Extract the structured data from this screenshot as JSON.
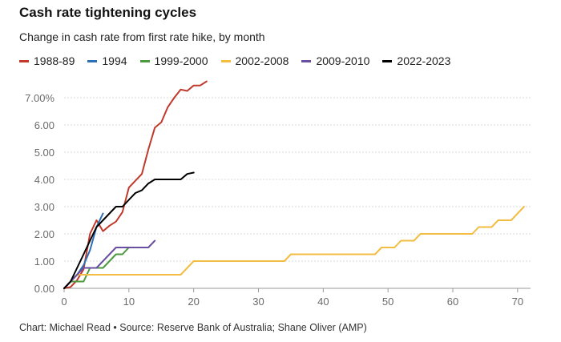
{
  "header": {
    "title": "Cash rate tightening cycles",
    "subtitle": "Change in cash rate from first rate hike, by month"
  },
  "footer": {
    "credit": "Chart: Michael Read • Source: Reserve Bank of Australia; Shane Oliver (AMP)"
  },
  "chart_data": {
    "type": "line",
    "title": "Cash rate tightening cycles",
    "subtitle": "Change in cash rate from first rate hike, by month",
    "xlabel": "",
    "ylabel": "",
    "xlim": [
      0,
      72
    ],
    "ylim": [
      0,
      7.5
    ],
    "x_ticks": [
      0,
      10,
      20,
      30,
      40,
      50,
      60,
      70
    ],
    "y_ticks": [
      0,
      1,
      2,
      3,
      4,
      5,
      6,
      7
    ],
    "y_tick_labels": [
      "0.00",
      "1.00",
      "2.00",
      "3.00",
      "4.00",
      "5.00",
      "6.00",
      "7.00%"
    ],
    "grid": "horizontal",
    "legend_position": "top",
    "series": [
      {
        "name": "1988-89",
        "color": "#c0392b",
        "points": [
          [
            0,
            0
          ],
          [
            1,
            0.05
          ],
          [
            2,
            0.3
          ],
          [
            3,
            0.7
          ],
          [
            4,
            2.0
          ],
          [
            5,
            2.5
          ],
          [
            6,
            2.1
          ],
          [
            7,
            2.3
          ],
          [
            8,
            2.45
          ],
          [
            9,
            2.8
          ],
          [
            10,
            3.7
          ],
          [
            11,
            3.95
          ],
          [
            12,
            4.2
          ],
          [
            13,
            5.1
          ],
          [
            14,
            5.9
          ],
          [
            15,
            6.1
          ],
          [
            16,
            6.65
          ],
          [
            17,
            7.0
          ],
          [
            18,
            7.3
          ],
          [
            19,
            7.25
          ],
          [
            20,
            7.45
          ],
          [
            21,
            7.45
          ],
          [
            22,
            7.6
          ]
        ]
      },
      {
        "name": "1994",
        "color": "#2c6fb5",
        "points": [
          [
            0,
            0
          ],
          [
            1,
            0.25
          ],
          [
            2,
            0.5
          ],
          [
            3,
            0.85
          ],
          [
            4,
            1.4
          ],
          [
            5,
            2.25
          ],
          [
            6,
            2.75
          ]
        ]
      },
      {
        "name": "1999-2000",
        "color": "#4c9a3e",
        "points": [
          [
            0,
            0
          ],
          [
            1,
            0.25
          ],
          [
            2,
            0.25
          ],
          [
            3,
            0.25
          ],
          [
            4,
            0.75
          ],
          [
            5,
            0.75
          ],
          [
            6,
            0.75
          ],
          [
            7,
            1.0
          ],
          [
            8,
            1.25
          ],
          [
            9,
            1.25
          ],
          [
            10,
            1.5
          ]
        ]
      },
      {
        "name": "2002-2008",
        "color": "#f2bd42",
        "points": [
          [
            0,
            0
          ],
          [
            1,
            0.25
          ],
          [
            2,
            0.5
          ],
          [
            17,
            0.5
          ],
          [
            18,
            0.5
          ],
          [
            20,
            1.0
          ],
          [
            34,
            1.0
          ],
          [
            35,
            1.25
          ],
          [
            48,
            1.25
          ],
          [
            49,
            1.5
          ],
          [
            51,
            1.5
          ],
          [
            52,
            1.75
          ],
          [
            54,
            1.75
          ],
          [
            55,
            2.0
          ],
          [
            56,
            2.0
          ],
          [
            63,
            2.0
          ],
          [
            64,
            2.25
          ],
          [
            65,
            2.25
          ],
          [
            66,
            2.25
          ],
          [
            67,
            2.5
          ],
          [
            69,
            2.5
          ],
          [
            71,
            3.0
          ]
        ]
      },
      {
        "name": "2009-2010",
        "color": "#6a4fa0",
        "points": [
          [
            0,
            0
          ],
          [
            1,
            0.25
          ],
          [
            2,
            0.5
          ],
          [
            3,
            0.75
          ],
          [
            5,
            0.75
          ],
          [
            6,
            1.0
          ],
          [
            7,
            1.25
          ],
          [
            8,
            1.5
          ],
          [
            12,
            1.5
          ],
          [
            13,
            1.5
          ],
          [
            14,
            1.75
          ]
        ]
      },
      {
        "name": "2022-2023",
        "color": "#000000",
        "points": [
          [
            0,
            0
          ],
          [
            1,
            0.25
          ],
          [
            2,
            0.75
          ],
          [
            3,
            1.25
          ],
          [
            4,
            1.75
          ],
          [
            5,
            2.25
          ],
          [
            6,
            2.5
          ],
          [
            7,
            2.75
          ],
          [
            8,
            3.0
          ],
          [
            9,
            3.0
          ],
          [
            10,
            3.25
          ],
          [
            11,
            3.5
          ],
          [
            12,
            3.6
          ],
          [
            13,
            3.85
          ],
          [
            14,
            4.0
          ],
          [
            15,
            4.0
          ],
          [
            18,
            4.0
          ],
          [
            19,
            4.2
          ],
          [
            20,
            4.25
          ]
        ]
      }
    ]
  }
}
